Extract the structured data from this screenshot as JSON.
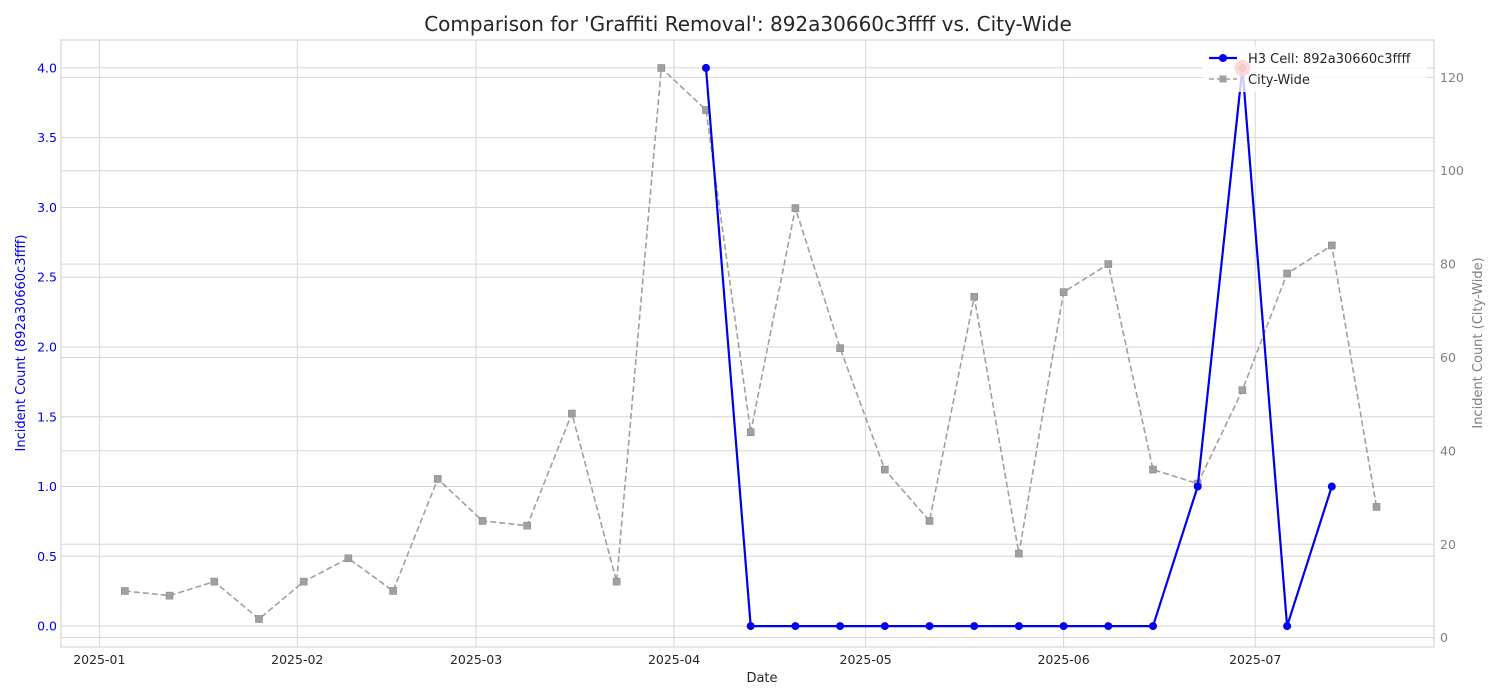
{
  "chart_data": {
    "type": "line",
    "title": "Comparison for 'Graffiti Removal': 892a30660c3ffff vs. City-Wide",
    "xlabel": "Date",
    "ylabel_left": "Incident Count (892a30660c3ffff)",
    "ylabel_right": "Incident Count (City-Wide)",
    "x_tick_labels": [
      "2025-01",
      "2025-02",
      "2025-03",
      "2025-04",
      "2025-05",
      "2025-06",
      "2025-07"
    ],
    "x_tick_dates": [
      "2025-01-01",
      "2025-02-01",
      "2025-03-01",
      "2025-04-01",
      "2025-05-01",
      "2025-06-01",
      "2025-07-01"
    ],
    "xlim": [
      "2024-12-26",
      "2025-07-29"
    ],
    "ylim_left": [
      -0.15,
      4.2
    ],
    "ylim_right": [
      -2,
      128
    ],
    "left_ticks": [
      "0.0",
      "0.5",
      "1.0",
      "1.5",
      "2.0",
      "2.5",
      "3.0",
      "3.5",
      "4.0"
    ],
    "right_ticks": [
      "0",
      "20",
      "40",
      "60",
      "80",
      "100",
      "120"
    ],
    "grid": true,
    "legend_position": "top-right",
    "colors": {
      "h3_cell": "#0000ee",
      "city_wide": "#a0a0a0",
      "highlight": "#ff2d2d",
      "left_axis_text": "#0000ee",
      "right_axis_text": "#808080"
    },
    "series": [
      {
        "name": "H3 Cell: 892a30660c3ffff",
        "axis": "left",
        "style": "solid",
        "marker": "circle",
        "x": [
          "2025-04-06",
          "2025-04-13",
          "2025-04-20",
          "2025-04-27",
          "2025-05-04",
          "2025-05-11",
          "2025-05-18",
          "2025-05-25",
          "2025-06-01",
          "2025-06-08",
          "2025-06-15",
          "2025-06-22",
          "2025-06-29",
          "2025-07-06",
          "2025-07-13"
        ],
        "values": [
          4,
          0,
          0,
          0,
          0,
          0,
          0,
          0,
          0,
          0,
          0,
          1,
          4,
          0,
          1
        ]
      },
      {
        "name": "City-Wide",
        "axis": "right",
        "style": "dashed",
        "marker": "square",
        "x": [
          "2025-01-05",
          "2025-01-12",
          "2025-01-19",
          "2025-01-26",
          "2025-02-02",
          "2025-02-09",
          "2025-02-16",
          "2025-02-23",
          "2025-03-02",
          "2025-03-09",
          "2025-03-16",
          "2025-03-23",
          "2025-03-30",
          "2025-04-06",
          "2025-04-13",
          "2025-04-20",
          "2025-04-27",
          "2025-05-04",
          "2025-05-11",
          "2025-05-18",
          "2025-05-25",
          "2025-06-01",
          "2025-06-08",
          "2025-06-15",
          "2025-06-22",
          "2025-06-29",
          "2025-07-06",
          "2025-07-13",
          "2025-07-20"
        ],
        "values": [
          10,
          9,
          12,
          4,
          12,
          17,
          10,
          34,
          25,
          24,
          48,
          12,
          122,
          113,
          44,
          92,
          62,
          36,
          25,
          73,
          18,
          74,
          80,
          36,
          33,
          53,
          78,
          84,
          28
        ]
      }
    ],
    "highlight_point": {
      "series": "H3 Cell: 892a30660c3ffff",
      "x": "2025-06-29",
      "value": 4
    }
  }
}
